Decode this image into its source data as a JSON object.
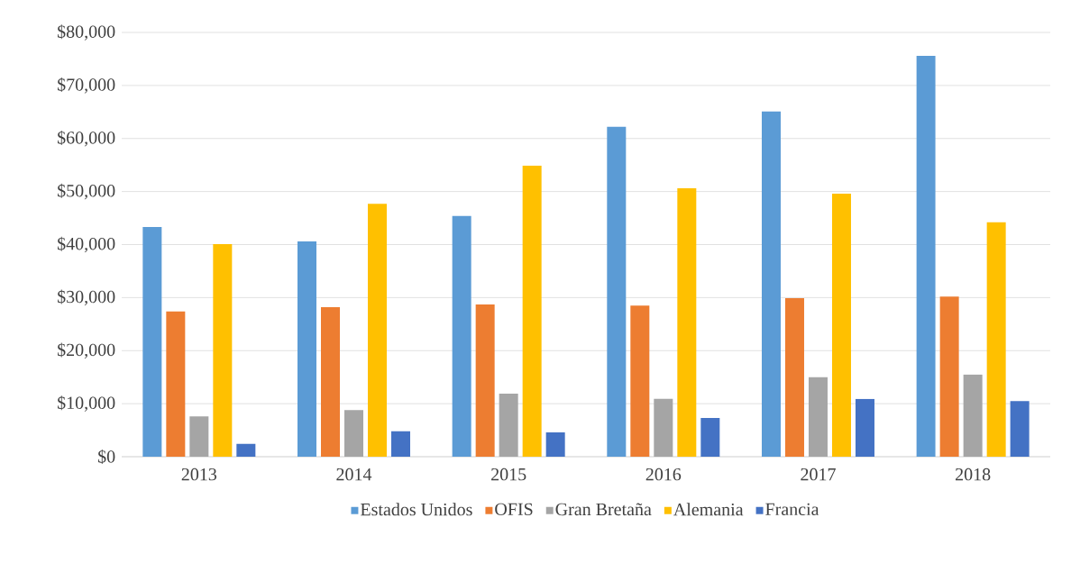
{
  "chart_data": {
    "type": "bar",
    "categories": [
      "2013",
      "2014",
      "2015",
      "2016",
      "2017",
      "2018"
    ],
    "series": [
      {
        "name": "Estados Unidos",
        "color": "#5b9bd5",
        "values": [
          43300,
          40600,
          45400,
          62200,
          65100,
          75600
        ]
      },
      {
        "name": "OFIS",
        "color": "#ed7d31",
        "values": [
          27400,
          28200,
          28700,
          28500,
          29900,
          30200
        ]
      },
      {
        "name": "Gran Bretaña",
        "color": "#a5a5a5",
        "values": [
          7600,
          8800,
          11900,
          10900,
          15000,
          15500
        ]
      },
      {
        "name": "Alemania",
        "color": "#ffc000",
        "values": [
          40100,
          47700,
          54900,
          50600,
          49600,
          44200
        ]
      },
      {
        "name": "Francia",
        "color": "#4472c4",
        "values": [
          2400,
          4800,
          4600,
          7300,
          10900,
          10500
        ]
      }
    ],
    "ylim": [
      0,
      80000
    ],
    "yticks": [
      {
        "value": 0,
        "label": "$0"
      },
      {
        "value": 10000,
        "label": "$10,000"
      },
      {
        "value": 20000,
        "label": "$20,000"
      },
      {
        "value": 30000,
        "label": "$30,000"
      },
      {
        "value": 40000,
        "label": "$40,000"
      },
      {
        "value": 50000,
        "label": "$50,000"
      },
      {
        "value": 60000,
        "label": "$60,000"
      },
      {
        "value": 70000,
        "label": "$70,000"
      },
      {
        "value": 80000,
        "label": "$80,000"
      }
    ],
    "grid": "y",
    "legend": "bottom"
  }
}
